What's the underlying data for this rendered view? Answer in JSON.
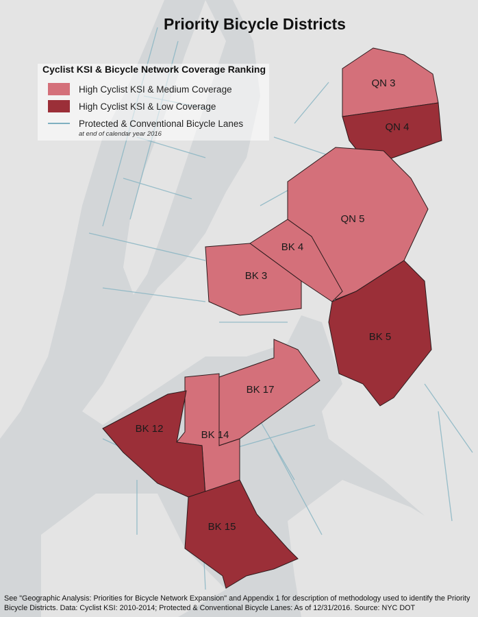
{
  "title": "Priority Bicycle Districts",
  "legend": {
    "title": "Cyclist KSI & Bicycle Network Coverage Ranking",
    "items": [
      {
        "label": "High Cyclist KSI & Medium Coverage",
        "color": "#d4707a"
      },
      {
        "label": "High Cyclist KSI & Low Coverage",
        "color": "#9b2f38"
      }
    ],
    "lanes": {
      "label": "Protected & Conventional Bicycle Lanes",
      "note": "at end of calendar year 2016",
      "color": "#7fb0c0"
    }
  },
  "districts": [
    "QN 3",
    "QN 4",
    "QN 5",
    "BK 4",
    "BK 3",
    "BK 5",
    "BK 17",
    "BK 14",
    "BK 12",
    "BK 15"
  ],
  "footnote": [
    "See \"Geographic Analysis: Priorities for Bicycle Network Expansion\" and Appendix 1 for description of methodology used to identify the Priority",
    "Bicycle Districts. Data: Cyclist KSI: 2010-2014; Protected & Conventional Bicycle Lanes: As of 12/31/2016. Source: NYC DOT"
  ]
}
